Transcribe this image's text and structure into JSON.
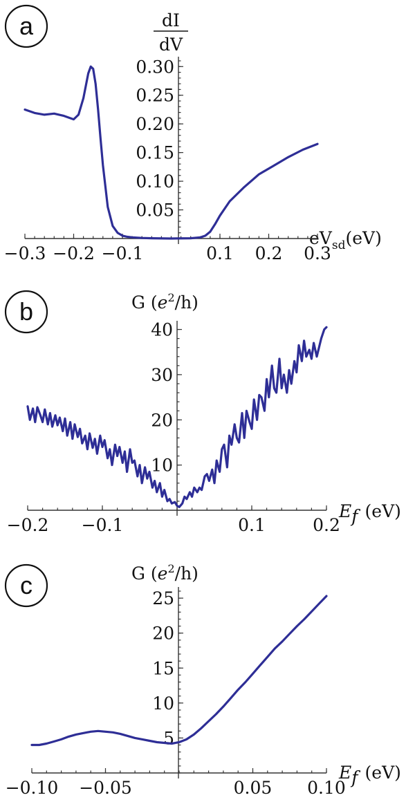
{
  "panels": [
    {
      "letter": "a"
    },
    {
      "letter": "b"
    },
    {
      "letter": "c"
    }
  ],
  "chart_data": [
    {
      "type": "line",
      "panel": "a",
      "ylabel_num": "dI",
      "ylabel_den": "dV",
      "xlabel_main": "eV",
      "xlabel_sub": "sd",
      "xlabel_unit": "(eV)",
      "xlim": [
        -0.3,
        0.3
      ],
      "ylim": [
        0,
        0.31
      ],
      "xticks": [
        -0.3,
        -0.2,
        -0.1,
        0.1,
        0.2,
        0.3
      ],
      "xtick_labels": [
        "−0.3",
        "−0.2",
        "−0.1",
        "0.1",
        "0.2",
        "0.3"
      ],
      "yticks": [
        0.05,
        0.1,
        0.15,
        0.2,
        0.25,
        0.3
      ],
      "ytick_labels": [
        "0.05",
        "0.10",
        "0.15",
        "0.20",
        "0.25",
        "0.30"
      ],
      "color": "#2e2e96",
      "series": [
        {
          "x": [
            -0.3,
            -0.28,
            -0.26,
            -0.24,
            -0.22,
            -0.2,
            -0.19,
            -0.18,
            -0.17,
            -0.165,
            -0.16,
            -0.155,
            -0.15,
            -0.145,
            -0.14,
            -0.13,
            -0.12,
            -0.11,
            -0.1,
            -0.09,
            -0.08,
            -0.06,
            -0.04,
            0.0,
            0.04,
            0.06,
            0.07,
            0.08,
            0.09,
            0.1,
            0.12,
            0.15,
            0.18,
            0.21,
            0.24,
            0.27,
            0.3
          ],
          "y": [
            0.225,
            0.219,
            0.216,
            0.218,
            0.214,
            0.208,
            0.216,
            0.245,
            0.288,
            0.3,
            0.296,
            0.27,
            0.225,
            0.175,
            0.128,
            0.055,
            0.022,
            0.01,
            0.005,
            0.003,
            0.002,
            0.001,
            0.0005,
            0.0,
            0.0005,
            0.002,
            0.005,
            0.012,
            0.025,
            0.04,
            0.065,
            0.09,
            0.112,
            0.127,
            0.142,
            0.155,
            0.165
          ]
        }
      ]
    },
    {
      "type": "line",
      "panel": "b",
      "ylabel_pre": "G (",
      "ylabel_e": "e",
      "ylabel_exp": "2",
      "ylabel_post": "/h)",
      "xlabel_sym": "E",
      "xlabel_sub": "f",
      "xlabel_unit": "(eV)",
      "xlim": [
        -0.2,
        0.2
      ],
      "ylim": [
        0,
        41
      ],
      "xticks": [
        -0.2,
        -0.1,
        0.1,
        0.2
      ],
      "xtick_labels": [
        "−0.2",
        "−0.1",
        "0.1",
        "0.2"
      ],
      "yticks": [
        10,
        20,
        30,
        40
      ],
      "ytick_labels": [
        "10",
        "20",
        "30",
        "40"
      ],
      "color": "#2e2e96",
      "series": [
        {
          "x": [
            -0.2,
            -0.197,
            -0.193,
            -0.19,
            -0.187,
            -0.183,
            -0.18,
            -0.177,
            -0.173,
            -0.17,
            -0.167,
            -0.163,
            -0.16,
            -0.157,
            -0.153,
            -0.15,
            -0.147,
            -0.143,
            -0.14,
            -0.137,
            -0.133,
            -0.13,
            -0.127,
            -0.123,
            -0.12,
            -0.117,
            -0.113,
            -0.11,
            -0.107,
            -0.103,
            -0.1,
            -0.097,
            -0.093,
            -0.09,
            -0.087,
            -0.083,
            -0.08,
            -0.077,
            -0.073,
            -0.07,
            -0.067,
            -0.063,
            -0.06,
            -0.057,
            -0.053,
            -0.05,
            -0.047,
            -0.043,
            -0.04,
            -0.037,
            -0.033,
            -0.03,
            -0.027,
            -0.023,
            -0.02,
            -0.017,
            -0.013,
            -0.01,
            -0.007,
            -0.003,
            0.0,
            0.003,
            0.007,
            0.01,
            0.013,
            0.017,
            0.02,
            0.023,
            0.027,
            0.03,
            0.033,
            0.037,
            0.04,
            0.043,
            0.047,
            0.05,
            0.053,
            0.057,
            0.06,
            0.063,
            0.067,
            0.07,
            0.073,
            0.077,
            0.08,
            0.083,
            0.087,
            0.09,
            0.093,
            0.097,
            0.1,
            0.103,
            0.107,
            0.11,
            0.113,
            0.117,
            0.12,
            0.123,
            0.127,
            0.13,
            0.133,
            0.137,
            0.14,
            0.143,
            0.147,
            0.15,
            0.153,
            0.157,
            0.16,
            0.163,
            0.167,
            0.17,
            0.173,
            0.177,
            0.18,
            0.183,
            0.187,
            0.19,
            0.193,
            0.197,
            0.2
          ],
          "y": [
            23.0,
            20.0,
            22.5,
            19.5,
            22.8,
            21.0,
            19.5,
            22.3,
            19.0,
            21.5,
            18.5,
            21.0,
            18.8,
            20.5,
            17.5,
            20.3,
            16.5,
            19.5,
            15.8,
            19.0,
            16.2,
            18.0,
            14.8,
            16.5,
            13.5,
            17.0,
            13.8,
            15.8,
            12.5,
            16.5,
            14.0,
            15.5,
            11.5,
            13.5,
            10.0,
            14.5,
            12.0,
            14.0,
            10.5,
            13.0,
            8.5,
            13.5,
            10.5,
            11.0,
            7.5,
            10.0,
            6.0,
            9.5,
            7.0,
            8.5,
            5.0,
            6.5,
            4.0,
            6.0,
            3.0,
            4.5,
            2.0,
            2.5,
            1.5,
            1.8,
            1.0,
            0.7,
            1.5,
            3.0,
            2.5,
            4.0,
            3.0,
            5.0,
            4.0,
            5.0,
            4.5,
            7.5,
            8.0,
            6.5,
            9.0,
            6.0,
            11.0,
            8.5,
            13.5,
            14.5,
            9.5,
            16.5,
            14.5,
            19.0,
            16.0,
            15.0,
            21.5,
            16.0,
            22.0,
            19.5,
            18.0,
            24.5,
            20.0,
            25.5,
            25.0,
            22.0,
            29.0,
            25.0,
            32.0,
            27.0,
            26.0,
            33.5,
            27.0,
            30.0,
            26.0,
            31.0,
            28.0,
            33.0,
            30.5,
            36.5,
            33.0,
            37.5,
            34.0,
            35.5,
            33.5,
            37.0,
            34.0,
            36.0,
            38.0,
            40.0,
            40.5
          ]
        }
      ]
    },
    {
      "type": "line",
      "panel": "c",
      "ylabel_pre": "G (",
      "ylabel_e": "e",
      "ylabel_exp": "2",
      "ylabel_post": "/h)",
      "xlabel_sym": "E",
      "xlabel_sub": "f",
      "xlabel_unit": "(eV)",
      "xlim": [
        -0.1,
        0.1
      ],
      "ylim": [
        0,
        26
      ],
      "xticks": [
        -0.1,
        -0.05,
        0.05,
        0.1
      ],
      "xtick_labels": [
        "−0.10",
        "−0.05",
        "0.05",
        "0.10"
      ],
      "yticks": [
        5,
        10,
        15,
        20,
        25
      ],
      "ytick_labels": [
        "5",
        "10",
        "15",
        "20",
        "25"
      ],
      "color": "#2e2e96",
      "series": [
        {
          "x": [
            -0.1,
            -0.095,
            -0.09,
            -0.085,
            -0.08,
            -0.075,
            -0.07,
            -0.065,
            -0.06,
            -0.055,
            -0.05,
            -0.045,
            -0.04,
            -0.035,
            -0.03,
            -0.025,
            -0.02,
            -0.015,
            -0.01,
            -0.005,
            0.0,
            0.005,
            0.01,
            0.015,
            0.02,
            0.025,
            0.03,
            0.035,
            0.04,
            0.045,
            0.05,
            0.055,
            0.06,
            0.065,
            0.07,
            0.075,
            0.08,
            0.085,
            0.09,
            0.095,
            0.1
          ],
          "y": [
            4.0,
            4.0,
            4.2,
            4.5,
            4.8,
            5.2,
            5.5,
            5.7,
            5.9,
            6.0,
            5.9,
            5.8,
            5.6,
            5.3,
            5.0,
            4.8,
            4.6,
            4.4,
            4.3,
            4.2,
            4.4,
            4.8,
            5.5,
            6.4,
            7.4,
            8.4,
            9.5,
            10.7,
            11.9,
            13.0,
            14.2,
            15.4,
            16.6,
            17.8,
            18.8,
            19.9,
            21.0,
            22.0,
            23.1,
            24.2,
            25.3
          ]
        }
      ]
    }
  ]
}
